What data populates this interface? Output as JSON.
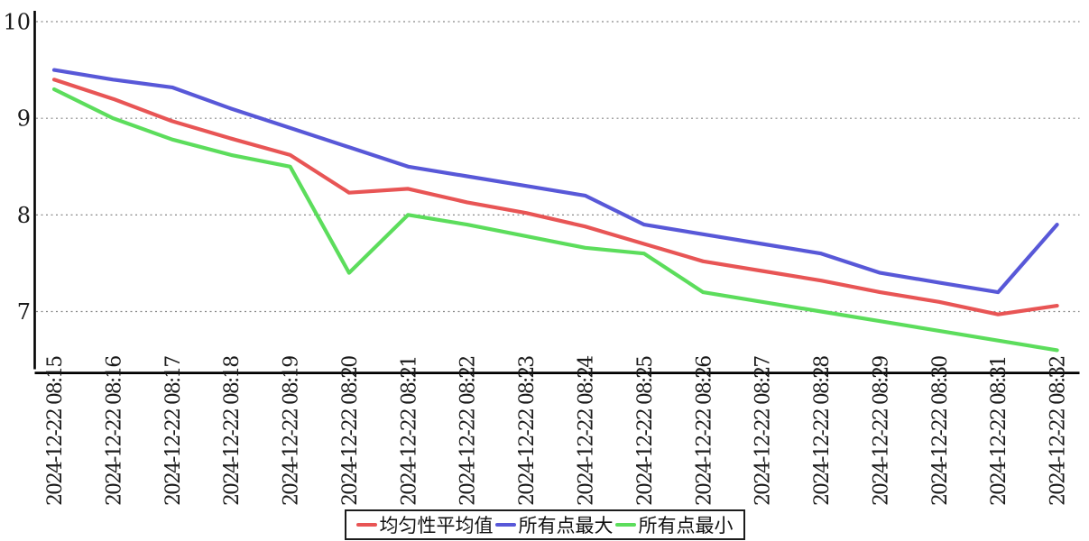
{
  "chart_data": {
    "type": "line",
    "title": "",
    "xlabel": "",
    "ylabel": "",
    "categories": [
      "2024-12-22 08:15",
      "2024-12-22 08:16",
      "2024-12-22 08:17",
      "2024-12-22 08:18",
      "2024-12-22 08:19",
      "2024-12-22 08:20",
      "2024-12-22 08:21",
      "2024-12-22 08:22",
      "2024-12-22 08:23",
      "2024-12-22 08:24",
      "2024-12-22 08:25",
      "2024-12-22 08:26",
      "2024-12-22 08:27",
      "2024-12-22 08:28",
      "2024-12-22 08:29",
      "2024-12-22 08:30",
      "2024-12-22 08:31",
      "2024-12-22 08:32"
    ],
    "series": [
      {
        "name": "均匀性平均值",
        "color": "#e85555",
        "values": [
          9.4,
          9.2,
          8.97,
          8.79,
          8.62,
          8.23,
          8.27,
          8.13,
          8.02,
          7.88,
          7.7,
          7.52,
          7.42,
          7.32,
          7.2,
          7.1,
          6.97,
          7.06
        ]
      },
      {
        "name": "所有点最大",
        "color": "#5858d8",
        "values": [
          9.5,
          9.4,
          9.32,
          9.1,
          8.9,
          8.7,
          8.5,
          8.4,
          8.3,
          8.2,
          7.9,
          7.8,
          7.7,
          7.6,
          7.4,
          7.3,
          7.2,
          7.9
        ]
      },
      {
        "name": "所有点最小",
        "color": "#5cdd5c",
        "values": [
          9.3,
          9.0,
          8.78,
          8.62,
          8.5,
          7.4,
          8.0,
          7.9,
          7.78,
          7.66,
          7.6,
          7.2,
          7.1,
          7.0,
          6.9,
          6.8,
          6.7,
          6.6
        ]
      }
    ],
    "yticks": [
      10,
      9,
      8,
      7
    ],
    "ylim": [
      6.37,
      10.11
    ],
    "grid": "horizontal-dashed",
    "grid_color": "#888888",
    "axis_color": "#000000",
    "legend_position": "bottom-center",
    "legend_border_color": "#1c1c1c"
  }
}
